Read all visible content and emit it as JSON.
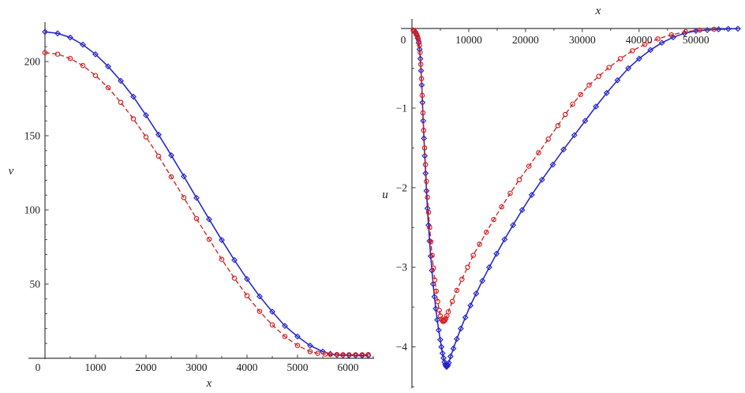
{
  "style": {
    "background": "#ffffff",
    "axis_color": "#3d3d3d",
    "text_color": "#1c1c1c",
    "blue_series_color": "#2424c8",
    "red_series_color": "#d42020"
  },
  "chart_data": [
    {
      "type": "line",
      "title": "",
      "xlabel": "x",
      "ylabel": "v",
      "xlim": [
        0,
        6500
      ],
      "ylim": [
        0,
        225
      ],
      "grid": false,
      "legend": null,
      "origin_label": "0",
      "x_ticks": {
        "values": [
          1000,
          2000,
          3000,
          4000,
          5000,
          6000
        ],
        "labels": [
          "1000",
          "2000",
          "3000",
          "4000",
          "5000",
          "6000"
        ],
        "minor": {
          "from": 500,
          "to": 6500,
          "step": 500
        }
      },
      "y_ticks": {
        "values": [
          50,
          100,
          150,
          200
        ],
        "labels": [
          "50",
          "100",
          "150",
          "200"
        ],
        "minor": {
          "from": 10,
          "to": 220,
          "step": 10
        }
      },
      "series": [
        {
          "name": "blue-solid-diamond",
          "color": "#2424c8",
          "line": "solid",
          "marker": "diamond",
          "points": [
            [
              0,
              220
            ],
            [
              250,
              219
            ],
            [
              500,
              216.2
            ],
            [
              750,
              211.4
            ],
            [
              1000,
              204.9
            ],
            [
              1250,
              196.7
            ],
            [
              1500,
              187
            ],
            [
              1750,
              176.3
            ],
            [
              2000,
              163.8
            ],
            [
              2250,
              150.7
            ],
            [
              2500,
              136.8
            ],
            [
              2750,
              122.6
            ],
            [
              3000,
              108.1
            ],
            [
              3250,
              93.7
            ],
            [
              3500,
              79.7
            ],
            [
              3750,
              66.2
            ],
            [
              4000,
              53.4
            ],
            [
              4250,
              41.7
            ],
            [
              4500,
              31.4
            ],
            [
              4750,
              21.8
            ],
            [
              5000,
              14.7
            ],
            [
              5250,
              8.5
            ],
            [
              5500,
              4.5
            ],
            [
              5650,
              3.0
            ],
            [
              5780,
              2.2
            ],
            [
              5900,
              2.0
            ],
            [
              6020,
              1.9
            ],
            [
              6150,
              1.85
            ],
            [
              6280,
              1.8
            ],
            [
              6400,
              1.8
            ]
          ]
        },
        {
          "name": "red-dashed-circle",
          "color": "#d42020",
          "line": "dashed",
          "marker": "circle",
          "points": [
            [
              0,
              206
            ],
            [
              250,
              205
            ],
            [
              500,
              202.1
            ],
            [
              750,
              197.3
            ],
            [
              1000,
              190.6
            ],
            [
              1250,
              182.4
            ],
            [
              1500,
              172.5
            ],
            [
              1750,
              161.4
            ],
            [
              2000,
              149.2
            ],
            [
              2250,
              136.2
            ],
            [
              2500,
              122.3
            ],
            [
              2750,
              108.3
            ],
            [
              3000,
              94.1
            ],
            [
              3250,
              80.2
            ],
            [
              3500,
              66.7
            ],
            [
              3750,
              54.0
            ],
            [
              4000,
              42.2
            ],
            [
              4250,
              31.6
            ],
            [
              4500,
              22.5
            ],
            [
              4750,
              14.7
            ],
            [
              5000,
              8.6
            ],
            [
              5250,
              4.5
            ],
            [
              5400,
              3.4
            ],
            [
              5550,
              2.8
            ],
            [
              5650,
              2.6
            ],
            [
              5780,
              2.5
            ],
            [
              5900,
              2.4
            ],
            [
              6020,
              2.4
            ],
            [
              6150,
              2.4
            ],
            [
              6280,
              2.4
            ],
            [
              6400,
              2.5
            ]
          ]
        }
      ]
    },
    {
      "type": "line",
      "title": "",
      "xlabel": "x",
      "ylabel": "u",
      "xlim": [
        0,
        57400
      ],
      "ylim": [
        -4.5,
        0.12
      ],
      "grid": false,
      "legend": null,
      "origin_label": "0",
      "x_ticks": {
        "values": [
          10000,
          20000,
          30000,
          40000,
          50000
        ],
        "labels": [
          "10000",
          "20000",
          "30000",
          "40000",
          "50000"
        ],
        "minor": {
          "from": 5000,
          "to": 55000,
          "step": 5000
        }
      },
      "y_ticks": {
        "values": [
          -1,
          -2,
          -3,
          -4
        ],
        "labels": [
          "−1",
          "−2",
          "−3",
          "−4"
        ],
        "minor": {
          "from": -4.5,
          "to": -0.5,
          "step": 0.5
        }
      },
      "series": [
        {
          "name": "blue-solid-diamond",
          "color": "#2424c8",
          "line": "solid",
          "marker": "diamond",
          "points": [
            [
              300,
              -0.03
            ],
            [
              550,
              -0.05
            ],
            [
              800,
              -0.08
            ],
            [
              1000,
              -0.12
            ],
            [
              1180,
              -0.18
            ],
            [
              1350,
              -0.26
            ],
            [
              1480,
              -0.38
            ],
            [
              1600,
              -0.53
            ],
            [
              1720,
              -0.71
            ],
            [
              1850,
              -0.93
            ],
            [
              1980,
              -1.16
            ],
            [
              2110,
              -1.38
            ],
            [
              2250,
              -1.6
            ],
            [
              2400,
              -1.82
            ],
            [
              2560,
              -2.04
            ],
            [
              2730,
              -2.26
            ],
            [
              2910,
              -2.47
            ],
            [
              3100,
              -2.67
            ],
            [
              3300,
              -2.86
            ],
            [
              3510,
              -3.04
            ],
            [
              3730,
              -3.21
            ],
            [
              3960,
              -3.37
            ],
            [
              4200,
              -3.52
            ],
            [
              4450,
              -3.66
            ],
            [
              4710,
              -3.79
            ],
            [
              4980,
              -3.91
            ],
            [
              5180,
              -4.0
            ],
            [
              5380,
              -4.08
            ],
            [
              5560,
              -4.14
            ],
            [
              5720,
              -4.19
            ],
            [
              5860,
              -4.22
            ],
            [
              5980,
              -4.24
            ],
            [
              6090,
              -4.25
            ],
            [
              6200,
              -4.245
            ],
            [
              6330,
              -4.23
            ],
            [
              6500,
              -4.2
            ],
            [
              6800,
              -4.12
            ],
            [
              7300,
              -4.02
            ],
            [
              7900,
              -3.9
            ],
            [
              8600,
              -3.77
            ],
            [
              9400,
              -3.63
            ],
            [
              10300,
              -3.48
            ],
            [
              11300,
              -3.33
            ],
            [
              12400,
              -3.17
            ],
            [
              13600,
              -3.0
            ],
            [
              14900,
              -2.83
            ],
            [
              16300,
              -2.65
            ],
            [
              17800,
              -2.47
            ],
            [
              19400,
              -2.28
            ],
            [
              21100,
              -2.09
            ],
            [
              22900,
              -1.9
            ],
            [
              24800,
              -1.71
            ],
            [
              26700,
              -1.52
            ],
            [
              28600,
              -1.34
            ],
            [
              30500,
              -1.16
            ],
            [
              32400,
              -0.98
            ],
            [
              34300,
              -0.81
            ],
            [
              36200,
              -0.65
            ],
            [
              38100,
              -0.5
            ],
            [
              40000,
              -0.38
            ],
            [
              42000,
              -0.27
            ],
            [
              44000,
              -0.18
            ],
            [
              46000,
              -0.11
            ],
            [
              48000,
              -0.06
            ],
            [
              50000,
              -0.03
            ],
            [
              52000,
              -0.02
            ],
            [
              54000,
              -0.01
            ],
            [
              55700,
              -0.005
            ],
            [
              57400,
              -0.003
            ]
          ]
        },
        {
          "name": "red-dashed-circle",
          "color": "#d42020",
          "line": "dashed",
          "marker": "circle",
          "points": [
            [
              250,
              -0.02
            ],
            [
              420,
              -0.03
            ],
            [
              580,
              -0.045
            ],
            [
              730,
              -0.06
            ],
            [
              870,
              -0.08
            ],
            [
              1000,
              -0.105
            ],
            [
              1120,
              -0.135
            ],
            [
              1230,
              -0.17
            ],
            [
              1330,
              -0.21
            ],
            [
              1440,
              -0.3
            ],
            [
              1560,
              -0.45
            ],
            [
              1680,
              -0.63
            ],
            [
              1800,
              -0.84
            ],
            [
              1930,
              -1.06
            ],
            [
              2070,
              -1.28
            ],
            [
              2220,
              -1.5
            ],
            [
              2380,
              -1.71
            ],
            [
              2550,
              -1.92
            ],
            [
              2730,
              -2.12
            ],
            [
              2920,
              -2.31
            ],
            [
              3120,
              -2.5
            ],
            [
              3330,
              -2.68
            ],
            [
              3550,
              -2.85
            ],
            [
              3780,
              -3.01
            ],
            [
              4020,
              -3.16
            ],
            [
              4270,
              -3.3
            ],
            [
              4530,
              -3.43
            ],
            [
              4800,
              -3.54
            ],
            [
              5000,
              -3.61
            ],
            [
              5180,
              -3.65
            ],
            [
              5350,
              -3.67
            ],
            [
              5500,
              -3.68
            ],
            [
              5650,
              -3.675
            ],
            [
              5800,
              -3.665
            ],
            [
              5950,
              -3.645
            ],
            [
              6150,
              -3.61
            ],
            [
              6400,
              -3.56
            ],
            [
              7100,
              -3.43
            ],
            [
              7900,
              -3.29
            ],
            [
              8800,
              -3.15
            ],
            [
              9800,
              -3.0
            ],
            [
              10800,
              -2.85
            ],
            [
              11900,
              -2.71
            ],
            [
              13100,
              -2.56
            ],
            [
              14400,
              -2.4
            ],
            [
              15800,
              -2.24
            ],
            [
              17300,
              -2.07
            ],
            [
              18900,
              -1.9
            ],
            [
              20600,
              -1.73
            ],
            [
              22300,
              -1.56
            ],
            [
              24000,
              -1.39
            ],
            [
              25700,
              -1.22
            ],
            [
              27000,
              -1.08
            ],
            [
              28300,
              -0.95
            ],
            [
              29700,
              -0.83
            ],
            [
              31200,
              -0.71
            ],
            [
              32900,
              -0.6
            ],
            [
              34700,
              -0.49
            ],
            [
              36700,
              -0.38
            ],
            [
              38800,
              -0.28
            ],
            [
              41000,
              -0.2
            ],
            [
              43300,
              -0.13
            ],
            [
              45700,
              -0.08
            ],
            [
              48200,
              -0.04
            ],
            [
              50700,
              -0.02
            ],
            [
              53200,
              -0.01
            ]
          ]
        }
      ]
    }
  ]
}
